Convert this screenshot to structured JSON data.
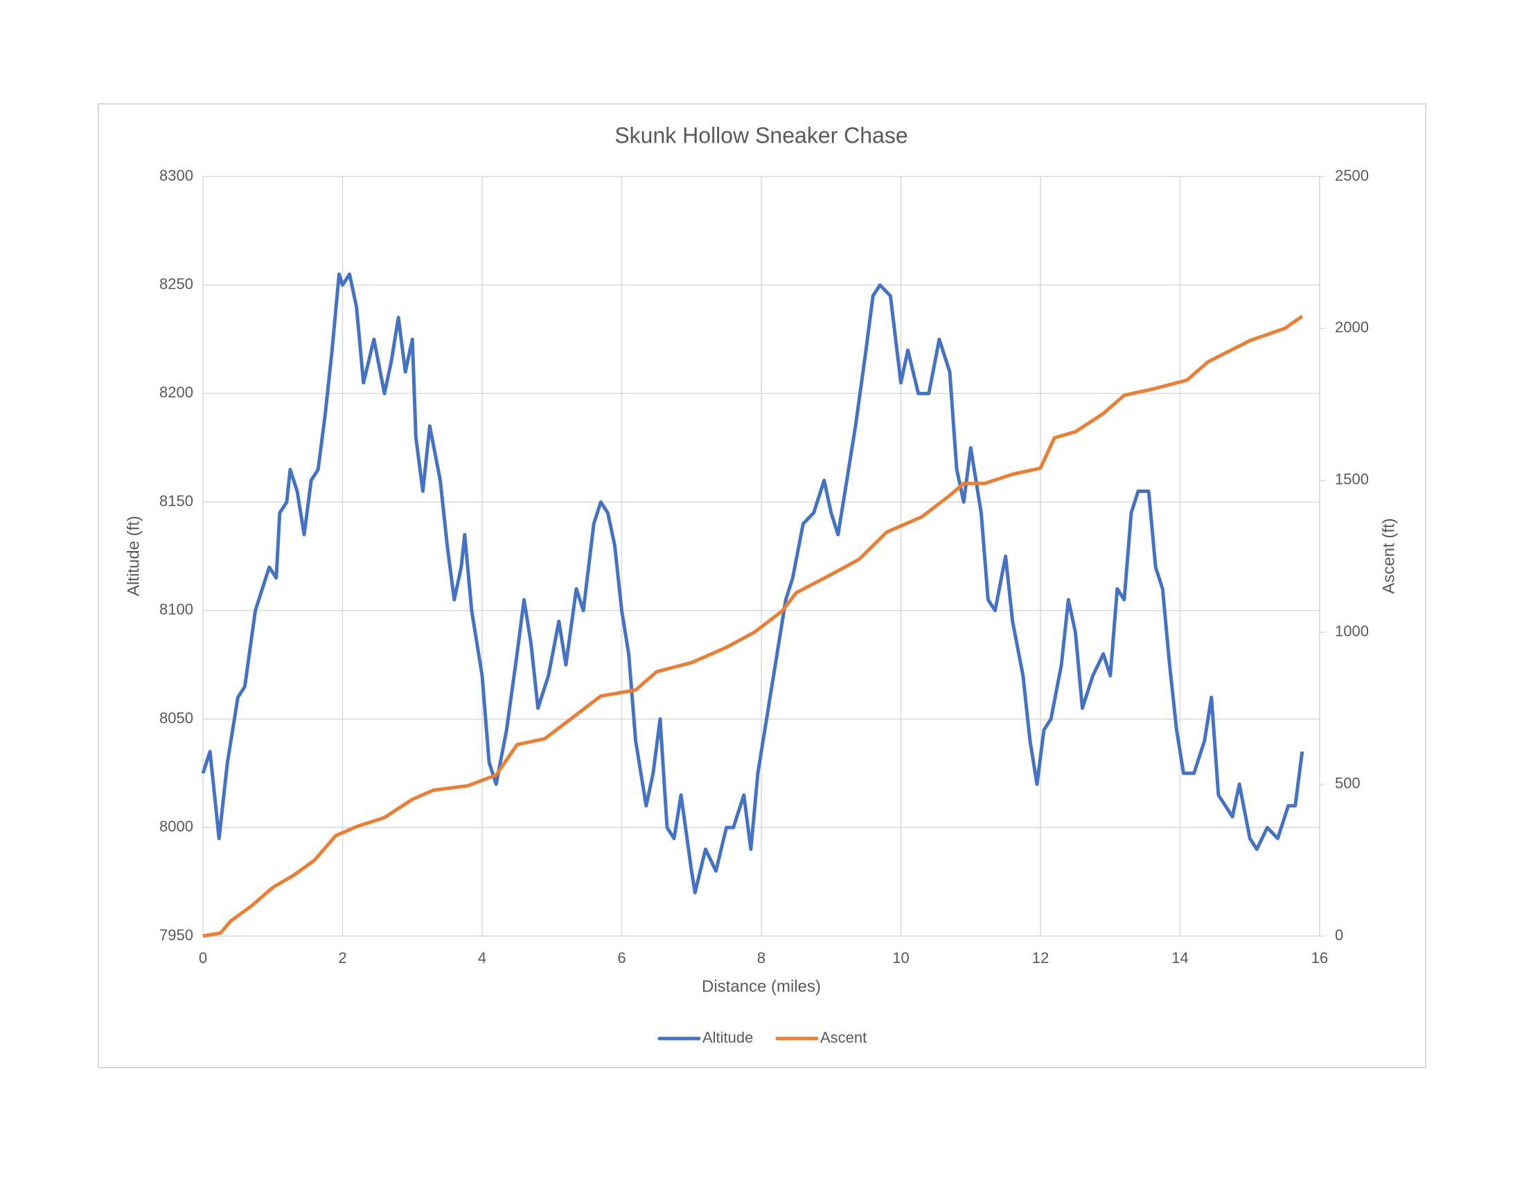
{
  "chart_data": {
    "type": "line",
    "title": "Skunk Hollow Sneaker Chase",
    "xlabel": "Distance (miles)",
    "ylabel": "Altitude (ft)",
    "y2label": "Ascent (ft)",
    "xlim": [
      0,
      16
    ],
    "xticks": [
      0,
      2,
      4,
      6,
      8,
      10,
      12,
      14,
      16
    ],
    "ylim": [
      7950,
      8300
    ],
    "yticks": [
      7950,
      8000,
      8050,
      8100,
      8150,
      8200,
      8250,
      8300
    ],
    "y2lim": [
      0,
      2500
    ],
    "y2ticks": [
      0,
      500,
      1000,
      1500,
      2000,
      2500
    ],
    "grid": true,
    "legend": "bottom",
    "series": [
      {
        "name": "Altitude",
        "color": "#4472c4",
        "axis": "y",
        "x": [
          0,
          0.1,
          0.15,
          0.23,
          0.35,
          0.5,
          0.6,
          0.75,
          0.85,
          0.95,
          1.05,
          1.1,
          1.2,
          1.25,
          1.35,
          1.45,
          1.55,
          1.65,
          1.75,
          1.85,
          1.95,
          2.0,
          2.1,
          2.2,
          2.3,
          2.45,
          2.6,
          2.7,
          2.8,
          2.9,
          3.0,
          3.05,
          3.15,
          3.25,
          3.4,
          3.5,
          3.6,
          3.7,
          3.75,
          3.85,
          4.0,
          4.1,
          4.2,
          4.35,
          4.5,
          4.6,
          4.7,
          4.8,
          4.95,
          5.1,
          5.2,
          5.35,
          5.45,
          5.6,
          5.7,
          5.8,
          5.9,
          6.0,
          6.1,
          6.2,
          6.35,
          6.45,
          6.55,
          6.65,
          6.75,
          6.85,
          7.0,
          7.05,
          7.2,
          7.35,
          7.5,
          7.6,
          7.75,
          7.85,
          7.95,
          8.1,
          8.2,
          8.35,
          8.45,
          8.6,
          8.75,
          8.9,
          9.0,
          9.1,
          9.2,
          9.35,
          9.5,
          9.6,
          9.7,
          9.85,
          10.0,
          10.1,
          10.25,
          10.4,
          10.55,
          10.7,
          10.8,
          10.9,
          11.0,
          11.15,
          11.25,
          11.35,
          11.5,
          11.6,
          11.75,
          11.85,
          11.95,
          12.05,
          12.15,
          12.3,
          12.4,
          12.5,
          12.6,
          12.75,
          12.9,
          13.0,
          13.1,
          13.2,
          13.3,
          13.4,
          13.55,
          13.65,
          13.75,
          13.85,
          13.95,
          14.05,
          14.2,
          14.35,
          14.45,
          14.55,
          14.65,
          14.75,
          14.85,
          15.0,
          15.1,
          15.25,
          15.4,
          15.55,
          15.65,
          15.75
        ],
        "values": [
          8025,
          8035,
          8020,
          7995,
          8030,
          8060,
          8065,
          8100,
          8110,
          8120,
          8115,
          8145,
          8150,
          8165,
          8155,
          8135,
          8160,
          8165,
          8190,
          8220,
          8255,
          8250,
          8255,
          8240,
          8205,
          8225,
          8200,
          8215,
          8235,
          8210,
          8225,
          8180,
          8155,
          8185,
          8160,
          8130,
          8105,
          8120,
          8135,
          8100,
          8070,
          8030,
          8020,
          8045,
          8080,
          8105,
          8085,
          8055,
          8070,
          8095,
          8075,
          8110,
          8100,
          8140,
          8150,
          8145,
          8130,
          8100,
          8080,
          8040,
          8010,
          8025,
          8050,
          8000,
          7995,
          8015,
          7980,
          7970,
          7990,
          7980,
          8000,
          8000,
          8015,
          7990,
          8025,
          8055,
          8075,
          8105,
          8115,
          8140,
          8145,
          8160,
          8145,
          8135,
          8155,
          8185,
          8220,
          8245,
          8250,
          8245,
          8205,
          8220,
          8200,
          8200,
          8225,
          8210,
          8165,
          8150,
          8175,
          8145,
          8105,
          8100,
          8125,
          8095,
          8070,
          8040,
          8020,
          8045,
          8050,
          8075,
          8105,
          8090,
          8055,
          8070,
          8080,
          8070,
          8110,
          8105,
          8145,
          8155,
          8155,
          8120,
          8110,
          8075,
          8045,
          8025,
          8025,
          8040,
          8060,
          8015,
          8010,
          8005,
          8020,
          7995,
          7990,
          8000,
          7995,
          8010,
          8010,
          8035
        ]
      },
      {
        "name": "Ascent",
        "color": "#ed7d31",
        "axis": "y2",
        "x": [
          0,
          0.25,
          0.4,
          0.7,
          1.0,
          1.3,
          1.6,
          1.9,
          2.2,
          2.6,
          3.0,
          3.3,
          3.8,
          4.2,
          4.5,
          4.9,
          5.3,
          5.7,
          6.2,
          6.5,
          7.0,
          7.5,
          7.9,
          8.3,
          8.5,
          9.0,
          9.4,
          9.8,
          10.3,
          10.7,
          10.9,
          11.2,
          11.6,
          12.0,
          12.2,
          12.5,
          12.9,
          13.2,
          13.6,
          14.1,
          14.4,
          15.0,
          15.5,
          15.75
        ],
        "values": [
          0,
          10,
          50,
          100,
          160,
          200,
          250,
          330,
          360,
          390,
          450,
          480,
          495,
          530,
          630,
          650,
          720,
          790,
          810,
          870,
          900,
          950,
          1000,
          1070,
          1130,
          1190,
          1240,
          1330,
          1380,
          1450,
          1490,
          1490,
          1520,
          1540,
          1640,
          1660,
          1720,
          1780,
          1800,
          1830,
          1890,
          1960,
          2000,
          2040
        ]
      }
    ]
  }
}
